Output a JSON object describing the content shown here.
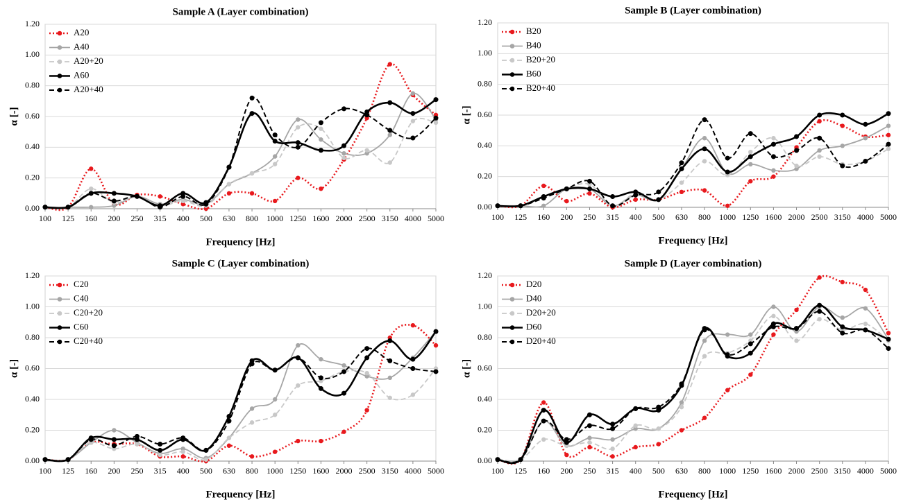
{
  "chart_data": [
    {
      "type": "line",
      "title": "Sample A (Layer combination)",
      "xlabel": "Frequency [Hz]",
      "ylabel": "α [-]",
      "categories": [
        "100",
        "125",
        "160",
        "200",
        "250",
        "315",
        "400",
        "500",
        "630",
        "800",
        "1000",
        "1250",
        "1600",
        "2000",
        "2500",
        "3150",
        "4000",
        "5000"
      ],
      "ylim": [
        0,
        1.2
      ],
      "yticks": [
        {
          "value": 0,
          "label": "0.00"
        },
        {
          "value": 0.2,
          "label": "0.20"
        },
        {
          "value": 0.4,
          "label": "0.40"
        },
        {
          "value": 0.6,
          "label": "0.60"
        },
        {
          "value": 0.8,
          "label": "0.80"
        },
        {
          "value": 1.0,
          "label": "1.00"
        },
        {
          "value": 1.2,
          "label": "1.20"
        }
      ],
      "grid": true,
      "legend": "upper left",
      "series": [
        {
          "name": "A20",
          "color": "#e8191d",
          "linestyle": "dotted",
          "values": [
            0.01,
            0.01,
            0.26,
            0.03,
            0.09,
            0.08,
            0.03,
            0.0,
            0.1,
            0.1,
            0.05,
            0.2,
            0.13,
            0.32,
            0.59,
            0.94,
            0.74,
            0.61
          ]
        },
        {
          "name": "A40",
          "color": "#a6a6a6",
          "linestyle": "solid",
          "values": [
            0.01,
            0.01,
            0.01,
            0.02,
            0.08,
            0.03,
            0.06,
            0.03,
            0.16,
            0.23,
            0.34,
            0.58,
            0.45,
            0.36,
            0.36,
            0.48,
            0.75,
            0.58
          ]
        },
        {
          "name": "A20+20",
          "color": "#c8c8c8",
          "linestyle": "dashed",
          "values": [
            0.01,
            0.01,
            0.13,
            0.04,
            0.08,
            0.02,
            0.05,
            0.02,
            0.16,
            0.23,
            0.29,
            0.53,
            0.52,
            0.33,
            0.38,
            0.3,
            0.57,
            0.56
          ]
        },
        {
          "name": "A60",
          "color": "#000000",
          "linestyle": "solid",
          "values": [
            0.01,
            0.01,
            0.1,
            0.1,
            0.08,
            0.02,
            0.1,
            0.04,
            0.27,
            0.62,
            0.44,
            0.43,
            0.38,
            0.41,
            0.63,
            0.69,
            0.62,
            0.71
          ]
        },
        {
          "name": "A20+40",
          "color": "#000000",
          "linestyle": "dashed",
          "values": [
            0.01,
            0.01,
            0.1,
            0.05,
            0.08,
            0.01,
            0.08,
            0.03,
            0.27,
            0.72,
            0.48,
            0.4,
            0.56,
            0.65,
            0.61,
            0.51,
            0.46,
            0.59
          ]
        }
      ]
    },
    {
      "type": "line",
      "title": "Sample B (Layer combination)",
      "xlabel": "Frequency [Hz]",
      "ylabel": "α [-]",
      "categories": [
        "100",
        "125",
        "160",
        "200",
        "250",
        "315",
        "400",
        "500",
        "630",
        "800",
        "1000",
        "1250",
        "1600",
        "2000",
        "2500",
        "3150",
        "4000",
        "5000"
      ],
      "ylim": [
        0,
        1.2
      ],
      "yticks": [
        {
          "value": 0,
          "label": "0.00"
        },
        {
          "value": 0.2,
          "label": "0.20"
        },
        {
          "value": 0.4,
          "label": "0.40"
        },
        {
          "value": 0.6,
          "label": "0.60"
        },
        {
          "value": 0.8,
          "label": "0.80"
        },
        {
          "value": 1.0,
          "label": "1.00"
        },
        {
          "value": 1.2,
          "label": "1.20"
        }
      ],
      "grid": true,
      "legend": "upper left",
      "series": [
        {
          "name": "B20",
          "color": "#e8191d",
          "linestyle": "dotted",
          "values": [
            0.01,
            0.01,
            0.14,
            0.04,
            0.09,
            0.0,
            0.05,
            0.05,
            0.1,
            0.11,
            0.01,
            0.17,
            0.2,
            0.39,
            0.56,
            0.53,
            0.46,
            0.47
          ]
        },
        {
          "name": "B40",
          "color": "#a6a6a6",
          "linestyle": "solid",
          "values": [
            0.01,
            0.01,
            0.01,
            0.12,
            0.12,
            0.01,
            0.08,
            0.05,
            0.25,
            0.45,
            0.22,
            0.28,
            0.24,
            0.25,
            0.37,
            0.4,
            0.45,
            0.53
          ]
        },
        {
          "name": "B20+20",
          "color": "#c8c8c8",
          "linestyle": "dashed",
          "values": [
            0.01,
            0.01,
            0.06,
            0.12,
            0.15,
            0.01,
            0.09,
            0.05,
            0.16,
            0.3,
            0.21,
            0.36,
            0.45,
            0.27,
            0.33,
            0.28,
            0.3,
            0.38
          ]
        },
        {
          "name": "B60",
          "color": "#000000",
          "linestyle": "solid",
          "values": [
            0.01,
            0.01,
            0.07,
            0.12,
            0.12,
            0.07,
            0.1,
            0.05,
            0.25,
            0.38,
            0.23,
            0.33,
            0.41,
            0.46,
            0.6,
            0.6,
            0.54,
            0.61
          ]
        },
        {
          "name": "B20+40",
          "color": "#000000",
          "linestyle": "dashed",
          "values": [
            0.01,
            0.01,
            0.06,
            0.12,
            0.17,
            0.01,
            0.08,
            0.1,
            0.29,
            0.57,
            0.32,
            0.48,
            0.33,
            0.37,
            0.45,
            0.27,
            0.3,
            0.41
          ]
        }
      ]
    },
    {
      "type": "line",
      "title": "Sample C (Layer combination)",
      "xlabel": "Frequency [Hz]",
      "ylabel": "α [-]",
      "categories": [
        "100",
        "125",
        "160",
        "200",
        "250",
        "315",
        "400",
        "500",
        "630",
        "800",
        "1000",
        "1250",
        "1600",
        "2000",
        "2500",
        "3150",
        "4000",
        "5000"
      ],
      "ylim": [
        0,
        1.2
      ],
      "yticks": [
        {
          "value": 0,
          "label": "0.00"
        },
        {
          "value": 0.2,
          "label": "0.20"
        },
        {
          "value": 0.4,
          "label": "0.40"
        },
        {
          "value": 0.6,
          "label": "0.60"
        },
        {
          "value": 0.8,
          "label": "0.80"
        },
        {
          "value": 1.0,
          "label": "1.00"
        },
        {
          "value": 1.2,
          "label": "1.20"
        }
      ],
      "grid": true,
      "legend": "upper left",
      "series": [
        {
          "name": "C20",
          "color": "#e8191d",
          "linestyle": "dotted",
          "values": [
            0.01,
            0.01,
            0.12,
            0.11,
            0.11,
            0.03,
            0.03,
            0.0,
            0.1,
            0.03,
            0.06,
            0.13,
            0.13,
            0.19,
            0.33,
            0.8,
            0.88,
            0.75
          ]
        },
        {
          "name": "C40",
          "color": "#a6a6a6",
          "linestyle": "solid",
          "values": [
            0.01,
            0.01,
            0.12,
            0.2,
            0.12,
            0.05,
            0.08,
            0.02,
            0.15,
            0.34,
            0.4,
            0.75,
            0.66,
            0.62,
            0.55,
            0.54,
            0.67,
            0.84
          ]
        },
        {
          "name": "C20+20",
          "color": "#c8c8c8",
          "linestyle": "dashed",
          "values": [
            0.01,
            0.01,
            0.12,
            0.08,
            0.11,
            0.04,
            0.06,
            0.01,
            0.15,
            0.25,
            0.3,
            0.49,
            0.52,
            0.58,
            0.57,
            0.41,
            0.43,
            0.6
          ]
        },
        {
          "name": "C60",
          "color": "#000000",
          "linestyle": "solid",
          "values": [
            0.01,
            0.01,
            0.15,
            0.14,
            0.14,
            0.07,
            0.14,
            0.07,
            0.29,
            0.65,
            0.59,
            0.67,
            0.47,
            0.44,
            0.67,
            0.78,
            0.66,
            0.84
          ]
        },
        {
          "name": "C20+40",
          "color": "#000000",
          "linestyle": "dashed",
          "values": [
            0.01,
            0.01,
            0.14,
            0.1,
            0.16,
            0.11,
            0.15,
            0.07,
            0.26,
            0.63,
            0.59,
            0.67,
            0.54,
            0.58,
            0.73,
            0.65,
            0.6,
            0.58
          ]
        }
      ]
    },
    {
      "type": "line",
      "title": "Sample D (Layer combination)",
      "xlabel": "Frequency [Hz]",
      "ylabel": "α [-]",
      "categories": [
        "100",
        "125",
        "160",
        "200",
        "250",
        "315",
        "400",
        "500",
        "630",
        "800",
        "1000",
        "1250",
        "1600",
        "2000",
        "2500",
        "3150",
        "4000",
        "5000"
      ],
      "ylim": [
        0,
        1.2
      ],
      "yticks": [
        {
          "value": 0,
          "label": "0.00"
        },
        {
          "value": 0.2,
          "label": "0.20"
        },
        {
          "value": 0.4,
          "label": "0.40"
        },
        {
          "value": 0.6,
          "label": "0.60"
        },
        {
          "value": 0.8,
          "label": "0.80"
        },
        {
          "value": 1.0,
          "label": "1.00"
        },
        {
          "value": 1.2,
          "label": "1.20"
        }
      ],
      "grid": true,
      "legend": "upper left",
      "series": [
        {
          "name": "D20",
          "color": "#e8191d",
          "linestyle": "dotted",
          "values": [
            0.01,
            0.01,
            0.38,
            0.04,
            0.09,
            0.03,
            0.09,
            0.11,
            0.2,
            0.28,
            0.46,
            0.56,
            0.82,
            0.98,
            1.19,
            1.16,
            1.11,
            0.83
          ]
        },
        {
          "name": "D40",
          "color": "#a6a6a6",
          "linestyle": "solid",
          "values": [
            0.01,
            0.01,
            0.26,
            0.1,
            0.15,
            0.14,
            0.21,
            0.21,
            0.38,
            0.78,
            0.82,
            0.82,
            1.0,
            0.84,
            1.0,
            0.93,
            0.99,
            0.79
          ]
        },
        {
          "name": "D20+20",
          "color": "#c8c8c8",
          "linestyle": "dashed",
          "values": [
            0.01,
            0.01,
            0.14,
            0.1,
            0.12,
            0.08,
            0.23,
            0.21,
            0.35,
            0.68,
            0.7,
            0.78,
            0.94,
            0.78,
            0.92,
            0.85,
            0.89,
            0.78
          ]
        },
        {
          "name": "D60",
          "color": "#000000",
          "linestyle": "solid",
          "values": [
            0.01,
            0.01,
            0.33,
            0.12,
            0.3,
            0.24,
            0.34,
            0.33,
            0.49,
            0.86,
            0.68,
            0.7,
            0.89,
            0.86,
            1.01,
            0.87,
            0.85,
            0.79
          ]
        },
        {
          "name": "D20+40",
          "color": "#000000",
          "linestyle": "dashed",
          "values": [
            0.01,
            0.01,
            0.26,
            0.14,
            0.23,
            0.21,
            0.34,
            0.35,
            0.5,
            0.85,
            0.69,
            0.76,
            0.87,
            0.86,
            0.97,
            0.83,
            0.85,
            0.73
          ]
        }
      ]
    }
  ]
}
